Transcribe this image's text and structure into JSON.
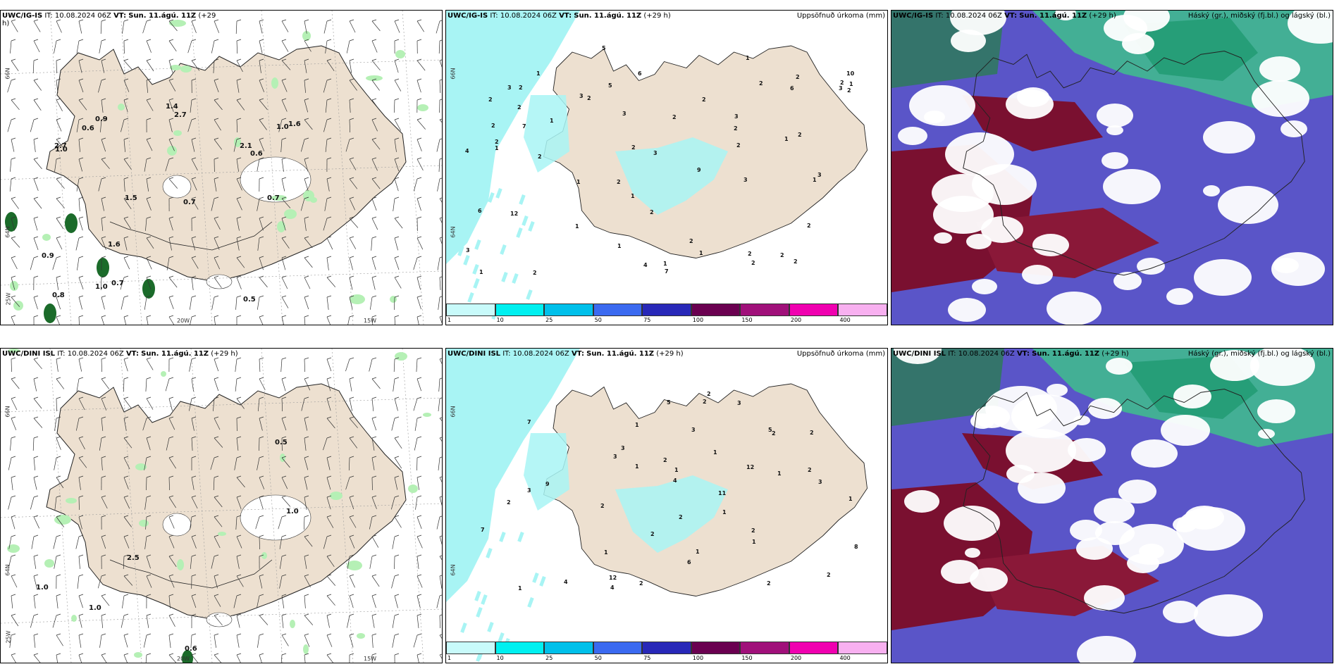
{
  "colors": {
    "land": "#ede0d0",
    "sea": "#ffffff",
    "precip": "#a8f4f4",
    "green": "#b5f0b5",
    "darkgreen": "#1b6b2a",
    "purple": "#5b4bc0",
    "maroon": "#7a1030",
    "teal": "#3fbf8c"
  },
  "panels": [
    {
      "id": "ig-wind",
      "model": "UWC/IG-IS",
      "it": "IT: 10.08.2024 06Z",
      "vt_label": "VT:",
      "vt": "Sun. 11.ágú. 11Z",
      "lead": "(+29",
      "lead2": "h)",
      "right": "",
      "values": [
        "0.6",
        "0.7",
        "1.5",
        "0.5",
        "0.9",
        "1.0",
        "0.7",
        "1.0",
        "1.6",
        "1.0",
        "2.1",
        "0.9",
        "2.7",
        "1.6",
        "0.7",
        "2.7",
        "0.8",
        "0.6",
        "1.4"
      ],
      "axes": [
        "66N",
        "64N",
        "25W",
        "20W",
        "15W"
      ]
    },
    {
      "id": "ig-precip",
      "model": "UWC/IG-IS",
      "it": "IT: 10.08.2024 06Z",
      "vt_label": "VT:",
      "vt": "Sun. 11.ágú. 11Z",
      "lead": "(+29 h)",
      "right": "Uppsöfnuð úrkoma (mm)",
      "values": [
        "7",
        "4",
        "3",
        "1",
        "3",
        "1",
        "2",
        "2",
        "1",
        "2",
        "2",
        "3",
        "6",
        "2",
        "2",
        "2",
        "1",
        "2",
        "3",
        "2",
        "1",
        "3",
        "5",
        "10",
        "4",
        "3",
        "12",
        "7",
        "3",
        "9",
        "2",
        "2",
        "2",
        "1",
        "2",
        "2",
        "2",
        "1",
        "1",
        "2",
        "2",
        "2",
        "2",
        "1",
        "3",
        "6",
        "1",
        "3",
        "5",
        "2",
        "2",
        "1",
        "1",
        "6",
        "1",
        "1",
        "2",
        "2",
        "2",
        "2",
        "2"
      ],
      "axes": [
        "66N",
        "64N"
      ]
    },
    {
      "id": "ig-cloud",
      "model": "UWC/IG-IS",
      "it": "IT: 10.08.2024 06Z",
      "vt_label": "VT:",
      "vt": "Sun. 11.ágú. 11Z",
      "lead": "(+29 h)",
      "right": "Háský (gr.), miðský (fj.bl.) og lágský (bl.)",
      "values": [],
      "axes": []
    },
    {
      "id": "dini-wind",
      "model": "UWC/DINI ISL",
      "it": "IT: 10.08.2024 06Z",
      "vt_label": "VT:",
      "vt": "Sun. 11.ágú. 11Z",
      "lead": "(+29 h)",
      "right": "",
      "values": [
        "1.0",
        "0.6",
        "1.0",
        "0.5",
        "1.0",
        "2.5"
      ],
      "axes": [
        "66N",
        "64N",
        "25W",
        "20W",
        "15W"
      ]
    },
    {
      "id": "dini-precip",
      "model": "UWC/DINI ISL",
      "it": "IT: 10.08.2024 06Z",
      "vt_label": "VT:",
      "vt": "Sun. 11.ágú. 11Z",
      "lead": "(+29 h)",
      "right": "Uppsöfnuð úrkoma (mm)",
      "values": [
        "2",
        "3",
        "2",
        "2",
        "3",
        "2",
        "1",
        "2",
        "2",
        "1",
        "3",
        "1",
        "4",
        "1",
        "2",
        "12",
        "12",
        "5",
        "7",
        "5",
        "8",
        "7",
        "9",
        "4",
        "3",
        "2",
        "1",
        "2",
        "6",
        "2",
        "1",
        "3",
        "1",
        "1",
        "2",
        "2",
        "11",
        "1",
        "2",
        "1",
        "2",
        "4",
        "3",
        "1"
      ],
      "axes": [
        "66N",
        "64N"
      ]
    },
    {
      "id": "dini-cloud",
      "model": "UWC/DINI ISL",
      "it": "IT: 10.08.2024 06Z",
      "vt_label": "VT:",
      "vt": "Sun. 11.ágú. 11Z",
      "lead": "(+29 h)",
      "right": "Háský (gr.), miðský (fj.bl.) og lágský (bl.)",
      "values": [],
      "axes": []
    }
  ],
  "colorbar": {
    "ticks": [
      "1",
      "10",
      "25",
      "50",
      "75",
      "100",
      "150",
      "200",
      "400"
    ],
    "colors": [
      "#c8fafa",
      "#00f0f0",
      "#00c0ea",
      "#3b6af0",
      "#2828b8",
      "#6a0050",
      "#a0107a",
      "#f000b0",
      "#f8b0f0"
    ]
  }
}
